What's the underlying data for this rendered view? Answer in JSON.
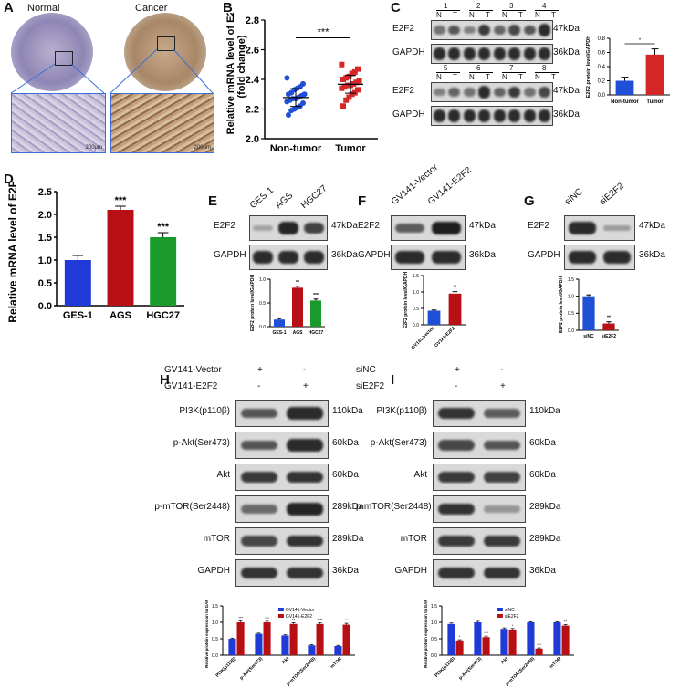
{
  "panels": {
    "A": {
      "label": "A",
      "titles": [
        "Normal",
        "Cancer"
      ],
      "scale": [
        "200μm",
        "200μm"
      ]
    },
    "B": {
      "label": "B"
    },
    "C": {
      "label": "C",
      "lanes_top": [
        "1",
        "2",
        "3",
        "4"
      ],
      "lanes_bottom": [
        "5",
        "6",
        "7",
        "8"
      ],
      "nt": [
        "N",
        "T"
      ],
      "rows": [
        "E2F2",
        "GAPDH"
      ],
      "kda": [
        "47kDa",
        "36kDa"
      ]
    },
    "D": {
      "label": "D"
    },
    "E": {
      "label": "E",
      "cols": [
        "GES-1",
        "AGS",
        "HGC27"
      ],
      "rows": [
        "E2F2",
        "GAPDH"
      ],
      "kda": [
        "47kDa",
        "36kDa"
      ]
    },
    "F": {
      "label": "F",
      "cols": [
        "GV141-Vector",
        "GV141-E2F2"
      ],
      "rows": [
        "E2F2",
        "GAPDH"
      ],
      "kda": [
        "47kDa",
        "36kDa"
      ]
    },
    "G": {
      "label": "G",
      "cols": [
        "siNC",
        "siE2F2"
      ],
      "rows": [
        "E2F2",
        "GAPDH"
      ],
      "kda": [
        "47kDa",
        "36kDa"
      ]
    },
    "H": {
      "label": "H",
      "cond1": "GV141-Vector",
      "cond2": "GV141-E2F2",
      "signs1": [
        "+",
        "-"
      ],
      "signs2": [
        "-",
        "+"
      ],
      "rows": [
        "PI3K(p110β)",
        "p-Akt(Ser473)",
        "Akt",
        "p-mTOR(Ser2448)",
        "mTOR",
        "GAPDH"
      ],
      "kda": [
        "110kDa",
        "60kDa",
        "60kDa",
        "289kDa",
        "289kDa",
        "36kDa"
      ]
    },
    "I": {
      "label": "I",
      "cond1": "siNC",
      "cond2": "siE2F2",
      "signs1": [
        "+",
        "-"
      ],
      "signs2": [
        "-",
        "+"
      ],
      "rows": [
        "PI3K(p110β)",
        "p-Akt(Ser473)",
        "Akt",
        "p-mTOR(Ser2448)",
        "mTOR",
        "GAPDH"
      ],
      "kda": [
        "110kDa",
        "60kDa",
        "60kDa",
        "289kDa",
        "289kDa",
        "36kDa"
      ]
    }
  },
  "chart_data": [
    {
      "id": "B",
      "type": "scatter",
      "ylabel": "Relative mRNA level of E2F2 (fold change)",
      "categories": [
        "Non-tumor",
        "Tumor"
      ],
      "ylim": [
        2.0,
        2.8
      ],
      "yticks": [
        2.0,
        2.2,
        2.4,
        2.6,
        2.8
      ],
      "significance": "***",
      "series": [
        {
          "name": "Non-tumor",
          "color": "#1f4fd6",
          "values": [
            2.41,
            2.37,
            2.35,
            2.34,
            2.33,
            2.31,
            2.3,
            2.3,
            2.29,
            2.28,
            2.27,
            2.27,
            2.26,
            2.25,
            2.24,
            2.22,
            2.21,
            2.2,
            2.19,
            2.16
          ]
        },
        {
          "name": "Tumor",
          "color": "#d62728",
          "values": [
            2.5,
            2.47,
            2.45,
            2.44,
            2.42,
            2.41,
            2.4,
            2.39,
            2.38,
            2.37,
            2.36,
            2.36,
            2.35,
            2.34,
            2.33,
            2.31,
            2.3,
            2.28,
            2.26,
            2.22
          ]
        }
      ]
    },
    {
      "id": "C",
      "type": "bar",
      "ylabel": "E2F2 protein level/GAPDH",
      "categories": [
        "Non-tumor",
        "Tumor"
      ],
      "values": [
        0.2,
        0.57
      ],
      "errors": [
        0.05,
        0.08
      ],
      "colors": [
        "#1f4fd6",
        "#d62728"
      ],
      "ylim": [
        0,
        0.8
      ],
      "yticks": [
        0.0,
        0.2,
        0.4,
        0.6,
        0.8
      ],
      "significance": "*"
    },
    {
      "id": "D",
      "type": "bar",
      "ylabel": "Relative mRNA level of E2F2",
      "categories": [
        "GES-1",
        "AGS",
        "HGC27"
      ],
      "values": [
        1.0,
        2.1,
        1.5
      ],
      "errors": [
        0.1,
        0.08,
        0.1
      ],
      "colors": [
        "#1f3ad6",
        "#b80f14",
        "#1a9a2a"
      ],
      "ylim": [
        0,
        2.5
      ],
      "yticks": [
        0.0,
        0.5,
        1.0,
        1.5,
        2.0,
        2.5
      ],
      "significance": [
        "",
        "***",
        "***"
      ]
    },
    {
      "id": "E",
      "type": "bar",
      "ylabel": "E2F2 protein level/GAPDH",
      "categories": [
        "GES-1",
        "AGS",
        "HGC27"
      ],
      "values": [
        0.15,
        0.82,
        0.55
      ],
      "errors": [
        0.02,
        0.03,
        0.03
      ],
      "colors": [
        "#1f4fd6",
        "#b80f14",
        "#1a9a2a"
      ],
      "ylim": [
        0,
        1.0
      ],
      "yticks": [
        0.0,
        0.5,
        1.0
      ],
      "significance": [
        "",
        "**",
        "***"
      ]
    },
    {
      "id": "F",
      "type": "bar",
      "ylabel": "E2F2 protein level/GAPDH",
      "categories": [
        "GV141-Vector",
        "GV141-E2F2"
      ],
      "values": [
        0.43,
        0.95
      ],
      "errors": [
        0.02,
        0.06
      ],
      "colors": [
        "#1f4fd6",
        "#b80f14"
      ],
      "ylim": [
        0,
        1.5
      ],
      "yticks": [
        0.0,
        0.5,
        1.0,
        1.5
      ],
      "significance": [
        "",
        "**"
      ]
    },
    {
      "id": "G",
      "type": "bar",
      "ylabel": "E2F2 protein level/GAPDH",
      "categories": [
        "siNC",
        "siE2F2"
      ],
      "values": [
        1.0,
        0.2
      ],
      "errors": [
        0.04,
        0.05
      ],
      "colors": [
        "#1f4fd6",
        "#b80f14"
      ],
      "ylim": [
        0,
        1.5
      ],
      "yticks": [
        0.0,
        0.5,
        1.0,
        1.5
      ],
      "significance": [
        "",
        "**"
      ]
    },
    {
      "id": "H",
      "type": "bar",
      "ylabel": "Relative protein expression to GAPDH",
      "categories": [
        "PI3K(p110β)",
        "p-Akt(Ser473)",
        "Akt",
        "p-mTOR(Ser2448)",
        "mTOR"
      ],
      "ylim": [
        0,
        1.5
      ],
      "yticks": [
        0.0,
        0.5,
        1.0,
        1.5
      ],
      "series": [
        {
          "name": "GV141-Vector",
          "color": "#1f3ad6",
          "values": [
            0.5,
            0.65,
            0.6,
            0.3,
            0.28
          ],
          "errors": [
            0.02,
            0.02,
            0.02,
            0.02,
            0.02
          ]
        },
        {
          "name": "GV141-E2F2",
          "color": "#b80f14",
          "values": [
            1.0,
            1.0,
            0.95,
            0.95,
            0.93
          ],
          "errors": [
            0.04,
            0.03,
            0.04,
            0.04,
            0.04
          ],
          "sig": [
            "***",
            "***",
            "**",
            "****",
            "***"
          ]
        }
      ]
    },
    {
      "id": "I",
      "type": "bar",
      "ylabel": "Relative protein expression to GAPDH",
      "categories": [
        "PI3K(p110β)",
        "p-Akt(Ser473)",
        "Akt",
        "p-mTOR(Ser2448)",
        "mTOR"
      ],
      "ylim": [
        0,
        1.5
      ],
      "yticks": [
        0.0,
        0.5,
        1.0,
        1.5
      ],
      "series": [
        {
          "name": "siNC",
          "color": "#1f3ad6",
          "values": [
            0.95,
            1.0,
            0.8,
            1.0,
            1.0
          ],
          "errors": [
            0.03,
            0.03,
            0.03,
            0.02,
            0.02
          ]
        },
        {
          "name": "siE2F2",
          "color": "#b80f14",
          "values": [
            0.45,
            0.55,
            0.78,
            0.2,
            0.9
          ],
          "errors": [
            0.02,
            0.03,
            0.03,
            0.02,
            0.03
          ],
          "sig": [
            "*",
            "***",
            "*",
            "***",
            "**"
          ]
        }
      ]
    }
  ]
}
